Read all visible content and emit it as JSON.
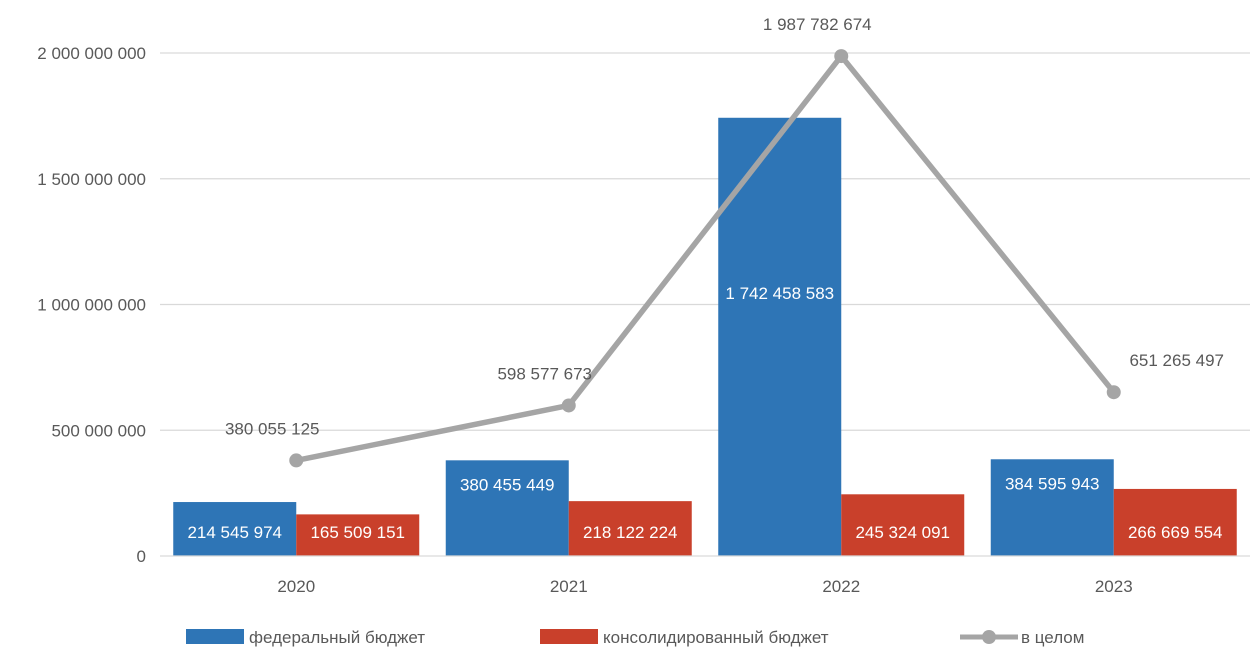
{
  "chart_data": {
    "type": "bar",
    "categories": [
      "2020",
      "2021",
      "2022",
      "2023"
    ],
    "ylim": [
      0,
      2000000000
    ],
    "yticks": [
      0,
      500000000,
      1000000000,
      1500000000,
      2000000000
    ],
    "ytick_labels": [
      "0",
      "500 000 000",
      "1 000 000 000",
      "1 500 000 000",
      "2 000 000 000"
    ],
    "grid": true,
    "legend_position": "bottom",
    "series": [
      {
        "name": "федеральный бюджет",
        "kind": "bar",
        "color": "#2E75B6",
        "values": [
          214545974,
          380455449,
          1742458583,
          384595943
        ],
        "labels": [
          "214 545 974",
          "380 455 449",
          "1 742 458 583",
          "384 595 943"
        ]
      },
      {
        "name": "консолидированный бюджет",
        "kind": "bar",
        "color": "#C9402B",
        "values": [
          165509151,
          218122224,
          245324091,
          266669554
        ],
        "labels": [
          "165 509 151",
          "218 122 224",
          "245 324 091",
          "266 669 554"
        ]
      },
      {
        "name": "в целом",
        "kind": "line",
        "color": "#A5A5A5",
        "values": [
          380055125,
          598577673,
          1987782674,
          651265497
        ],
        "labels": [
          "380 055 125",
          "598 577 673",
          "1 987 782 674",
          "651 265 497"
        ]
      }
    ]
  }
}
